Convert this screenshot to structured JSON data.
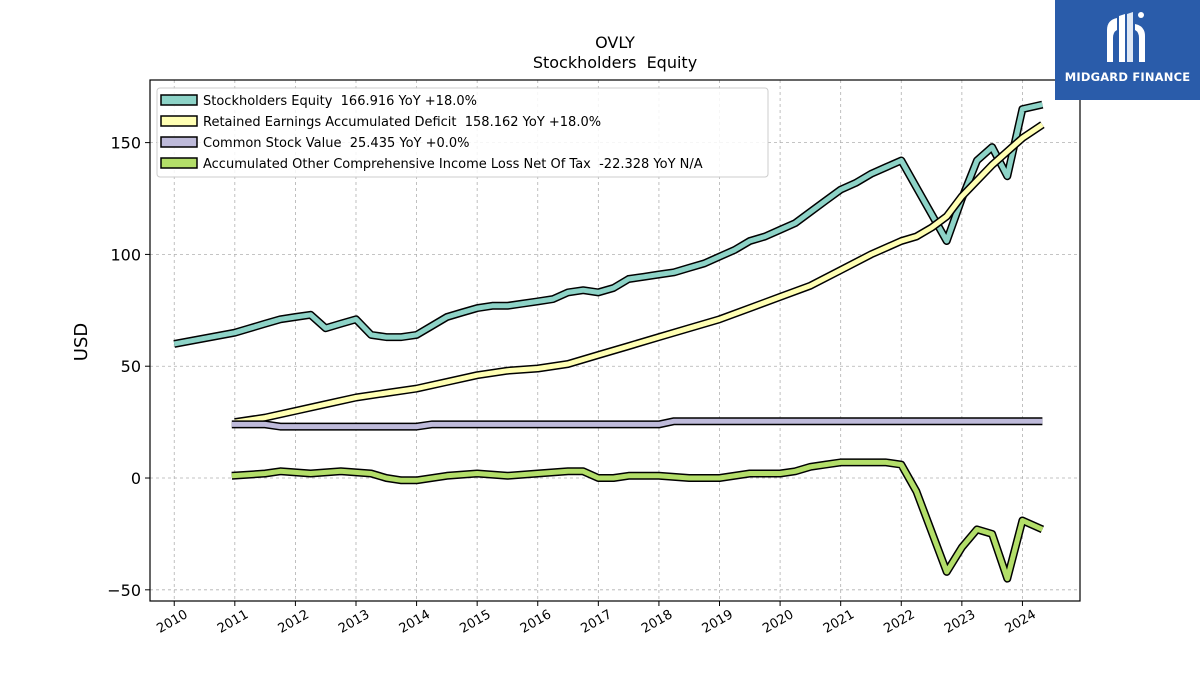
{
  "chart_data": {
    "type": "line",
    "title": "OVLY",
    "subtitle": "Stockholders  Equity",
    "xlabel": "",
    "ylabel": "USD",
    "xlim": [
      2009.6,
      2024.95
    ],
    "ylim": [
      -55,
      178
    ],
    "yticks": [
      -50,
      0,
      50,
      100,
      150
    ],
    "ytick_labels": [
      "−50",
      "0",
      "50",
      "100",
      "150"
    ],
    "xticks": [
      2010,
      2011,
      2012,
      2013,
      2014,
      2015,
      2016,
      2017,
      2018,
      2019,
      2020,
      2021,
      2022,
      2023,
      2024
    ],
    "xtick_labels": [
      "2010",
      "2011",
      "2012",
      "2013",
      "2014",
      "2015",
      "2016",
      "2017",
      "2018",
      "2019",
      "2020",
      "2021",
      "2022",
      "2023",
      "2024"
    ],
    "grid": true,
    "legend_position": "top-left",
    "series": [
      {
        "name": "Stockholders Equity",
        "legend_label": "Stockholders Equity  166.916 YoY +18.0%",
        "color": "#8dd3c7",
        "points": [
          [
            2010.0,
            60
          ],
          [
            2011.0,
            65
          ],
          [
            2011.25,
            67
          ],
          [
            2011.5,
            69
          ],
          [
            2011.75,
            71
          ],
          [
            2012.0,
            72
          ],
          [
            2012.25,
            73
          ],
          [
            2012.5,
            67
          ],
          [
            2012.75,
            69
          ],
          [
            2013.0,
            71
          ],
          [
            2013.25,
            64
          ],
          [
            2013.5,
            63
          ],
          [
            2013.75,
            63
          ],
          [
            2014.0,
            64
          ],
          [
            2014.25,
            68
          ],
          [
            2014.5,
            72
          ],
          [
            2014.75,
            74
          ],
          [
            2015.0,
            76
          ],
          [
            2015.25,
            77
          ],
          [
            2015.5,
            77
          ],
          [
            2015.75,
            78
          ],
          [
            2016.0,
            79
          ],
          [
            2016.25,
            80
          ],
          [
            2016.5,
            83
          ],
          [
            2016.75,
            84
          ],
          [
            2017.0,
            83
          ],
          [
            2017.25,
            85
          ],
          [
            2017.5,
            89
          ],
          [
            2017.75,
            90
          ],
          [
            2018.0,
            91
          ],
          [
            2018.25,
            92
          ],
          [
            2018.5,
            94
          ],
          [
            2018.75,
            96
          ],
          [
            2019.0,
            99
          ],
          [
            2019.25,
            102
          ],
          [
            2019.5,
            106
          ],
          [
            2019.75,
            108
          ],
          [
            2020.0,
            111
          ],
          [
            2020.25,
            114
          ],
          [
            2020.5,
            119
          ],
          [
            2020.75,
            124
          ],
          [
            2021.0,
            129
          ],
          [
            2021.25,
            132
          ],
          [
            2021.5,
            136
          ],
          [
            2021.75,
            139
          ],
          [
            2022.0,
            142
          ],
          [
            2022.25,
            130
          ],
          [
            2022.5,
            118
          ],
          [
            2022.75,
            106
          ],
          [
            2023.0,
            125
          ],
          [
            2023.25,
            142
          ],
          [
            2023.5,
            148
          ],
          [
            2023.75,
            135
          ],
          [
            2024.0,
            165
          ],
          [
            2024.33,
            167
          ]
        ]
      },
      {
        "name": "Retained Earnings Accumulated Deficit",
        "legend_label": "Retained Earnings Accumulated Deficit  158.162 YoY +18.0%",
        "color": "#ffffb3",
        "points": [
          [
            2011.0,
            25
          ],
          [
            2011.5,
            27
          ],
          [
            2012.0,
            30
          ],
          [
            2012.5,
            33
          ],
          [
            2013.0,
            36
          ],
          [
            2013.5,
            38
          ],
          [
            2014.0,
            40
          ],
          [
            2014.5,
            43
          ],
          [
            2015.0,
            46
          ],
          [
            2015.5,
            48
          ],
          [
            2016.0,
            49
          ],
          [
            2016.5,
            51
          ],
          [
            2017.0,
            55
          ],
          [
            2017.5,
            59
          ],
          [
            2018.0,
            63
          ],
          [
            2018.5,
            67
          ],
          [
            2019.0,
            71
          ],
          [
            2019.5,
            76
          ],
          [
            2020.0,
            81
          ],
          [
            2020.5,
            86
          ],
          [
            2021.0,
            93
          ],
          [
            2021.5,
            100
          ],
          [
            2022.0,
            106
          ],
          [
            2022.25,
            108
          ],
          [
            2022.5,
            112
          ],
          [
            2022.75,
            117
          ],
          [
            2023.0,
            126
          ],
          [
            2023.5,
            140
          ],
          [
            2024.0,
            152
          ],
          [
            2024.33,
            158
          ]
        ]
      },
      {
        "name": "Common Stock Value",
        "legend_label": "Common Stock Value  25.435 YoY +0.0%",
        "color": "#bebada",
        "points": [
          [
            2010.95,
            24
          ],
          [
            2011.5,
            24
          ],
          [
            2011.75,
            23
          ],
          [
            2014.0,
            23
          ],
          [
            2014.25,
            24
          ],
          [
            2018.0,
            24
          ],
          [
            2018.25,
            25.4
          ],
          [
            2024.33,
            25.4
          ]
        ]
      },
      {
        "name": "Accumulated Other Comprehensive Income Loss Net Of Tax",
        "legend_label": "Accumulated Other Comprehensive Income Loss Net Of Tax  -22.328 YoY N/A",
        "color": "#b3de69",
        "points": [
          [
            2010.95,
            1
          ],
          [
            2011.5,
            2
          ],
          [
            2011.75,
            3
          ],
          [
            2012.25,
            2
          ],
          [
            2012.75,
            3
          ],
          [
            2013.25,
            2
          ],
          [
            2013.5,
            0
          ],
          [
            2013.75,
            -1
          ],
          [
            2014.0,
            -1
          ],
          [
            2014.5,
            1
          ],
          [
            2015.0,
            2
          ],
          [
            2015.5,
            1
          ],
          [
            2016.0,
            2
          ],
          [
            2016.5,
            3
          ],
          [
            2016.75,
            3
          ],
          [
            2017.0,
            0
          ],
          [
            2017.25,
            0
          ],
          [
            2017.5,
            1
          ],
          [
            2018.0,
            1
          ],
          [
            2018.5,
            0
          ],
          [
            2019.0,
            0
          ],
          [
            2019.5,
            2
          ],
          [
            2020.0,
            2
          ],
          [
            2020.25,
            3
          ],
          [
            2020.5,
            5
          ],
          [
            2020.75,
            6
          ],
          [
            2021.0,
            7
          ],
          [
            2021.25,
            7
          ],
          [
            2021.5,
            7
          ],
          [
            2021.75,
            7
          ],
          [
            2022.0,
            6
          ],
          [
            2022.25,
            -6
          ],
          [
            2022.5,
            -24
          ],
          [
            2022.75,
            -42
          ],
          [
            2023.0,
            -31
          ],
          [
            2023.25,
            -23
          ],
          [
            2023.5,
            -25
          ],
          [
            2023.75,
            -45
          ],
          [
            2024.0,
            -19
          ],
          [
            2024.33,
            -23
          ]
        ]
      }
    ]
  },
  "logo": {
    "text": "MIDGARD FINANCE"
  }
}
